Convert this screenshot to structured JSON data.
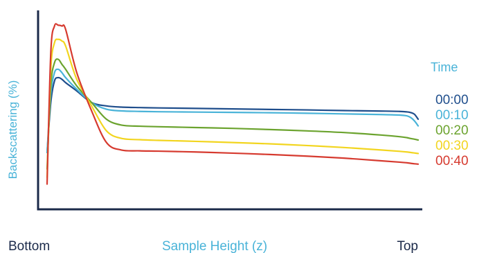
{
  "chart_data": {
    "type": "line",
    "title": "",
    "ylabel": "Backscattering (%)",
    "xlabel": "Sample Height (z)",
    "x_start_label": "Bottom",
    "x_end_label": "Top",
    "legend_title": "Time",
    "legend_position": "right",
    "grid": false,
    "axis_color": "#1b2a4a",
    "x": [
      0,
      1,
      2,
      3,
      4,
      5,
      8,
      12,
      16,
      20,
      25,
      30,
      40,
      50,
      60,
      70,
      80,
      90,
      95,
      97,
      98,
      99,
      100
    ],
    "series": [
      {
        "name": "00:00",
        "color": "#1f4e8c",
        "values": [
          20,
          50,
          63,
          65,
          64,
          62,
          57,
          50,
          48,
          47.3,
          47.0,
          46.8,
          46.5,
          46.2,
          45.9,
          45.6,
          45.2,
          44.9,
          44.7,
          44.4,
          44.0,
          43.0,
          40.0
        ]
      },
      {
        "name": "00:10",
        "color": "#49b3d8",
        "values": [
          20,
          55,
          68,
          70,
          68,
          65,
          58,
          50,
          46,
          45.0,
          44.7,
          44.5,
          44.3,
          44.1,
          43.9,
          43.6,
          43.2,
          42.8,
          42.5,
          42.0,
          41.0,
          39.0,
          36.0
        ]
      },
      {
        "name": "00:20",
        "color": "#6ba32e",
        "values": [
          10,
          60,
          74,
          76,
          73,
          70,
          60,
          50,
          40,
          36.5,
          35.8,
          35.5,
          35.0,
          34.5,
          33.8,
          33.0,
          32.0,
          30.5,
          29.5,
          28.9,
          28.4,
          28.0,
          27.5
        ]
      },
      {
        "name": "00:30",
        "color": "#f2d51f",
        "values": [
          5,
          70,
          86,
          88,
          87,
          84,
          64,
          48,
          33,
          28.5,
          27.7,
          27.3,
          26.7,
          26.0,
          25.2,
          24.2,
          23.0,
          21.5,
          20.7,
          20.3,
          20.0,
          19.7,
          19.4
        ]
      },
      {
        "name": "00:40",
        "color": "#d63a2f",
        "values": [
          1,
          80,
          96,
          96.5,
          96,
          94,
          68,
          45,
          26,
          21.5,
          21.0,
          20.8,
          20.3,
          19.6,
          18.8,
          17.8,
          16.6,
          15.0,
          14.2,
          13.8,
          13.5,
          13.2,
          13.0
        ]
      }
    ],
    "xlim": [
      0,
      100
    ],
    "ylim": [
      0,
      100
    ]
  }
}
